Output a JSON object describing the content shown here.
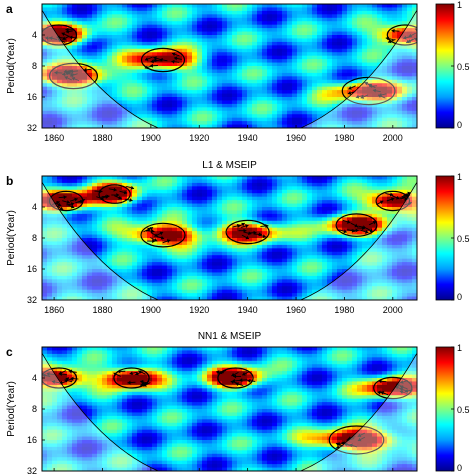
{
  "chart_data": [
    {
      "type": "heatmap",
      "panel_label": "a",
      "title": "",
      "ylabel": "Period(Year)",
      "x_ticks": [
        "1860",
        "1880",
        "1900",
        "1920",
        "1940",
        "1960",
        "1980",
        "2000"
      ],
      "y_ticks": [
        "4",
        "8",
        "16",
        "32"
      ],
      "xlim": [
        1855,
        2010
      ],
      "ylim": [
        2,
        32
      ],
      "y_scale": "log2",
      "colorbar": {
        "range": [
          0,
          1
        ],
        "ticks": [
          "1",
          "0.5",
          "0"
        ]
      },
      "significant_regions": [
        {
          "x": 1862,
          "period": 4,
          "strength": 1.0
        },
        {
          "x": 1868,
          "period": 10,
          "strength": 0.95
        },
        {
          "x": 1905,
          "period": 7,
          "strength": 0.9
        },
        {
          "x": 1990,
          "period": 14,
          "strength": 0.7
        },
        {
          "x": 2005,
          "period": 4,
          "strength": 0.9
        }
      ]
    },
    {
      "type": "heatmap",
      "panel_label": "b",
      "title": "L1 & MSEIP",
      "ylabel": "Period(Year)",
      "x_ticks": [
        "1860",
        "1880",
        "1900",
        "1920",
        "1940",
        "1960",
        "1980",
        "2000"
      ],
      "y_ticks": [
        "4",
        "8",
        "16",
        "32"
      ],
      "xlim": [
        1855,
        2010
      ],
      "ylim": [
        2,
        32
      ],
      "y_scale": "log2",
      "colorbar": {
        "range": [
          0,
          1
        ],
        "ticks": [
          "1",
          "0.5",
          "0"
        ]
      },
      "significant_regions": [
        {
          "x": 1865,
          "period": 3.5,
          "strength": 1.0
        },
        {
          "x": 1885,
          "period": 3,
          "strength": 0.95
        },
        {
          "x": 1905,
          "period": 7.5,
          "strength": 0.95
        },
        {
          "x": 1940,
          "period": 7,
          "strength": 0.8
        },
        {
          "x": 1985,
          "period": 6,
          "strength": 0.85
        },
        {
          "x": 2000,
          "period": 3.5,
          "strength": 1.0
        }
      ]
    },
    {
      "type": "heatmap",
      "panel_label": "c",
      "title": "NN1 & MSEIP",
      "ylabel": "Period(Year)",
      "x_ticks": [
        "1860",
        "1880",
        "1900",
        "1920",
        "1940",
        "1960",
        "1980",
        "2000"
      ],
      "y_ticks": [
        "4",
        "8",
        "16",
        "32"
      ],
      "xlim": [
        1855,
        2010
      ],
      "ylim": [
        2,
        32
      ],
      "y_scale": "log2",
      "colorbar": {
        "range": [
          0,
          1
        ],
        "ticks": [
          "1",
          "0.5",
          "0"
        ]
      },
      "significant_regions": [
        {
          "x": 1862,
          "period": 4,
          "strength": 1.0
        },
        {
          "x": 1892,
          "period": 4,
          "strength": 1.0
        },
        {
          "x": 1935,
          "period": 4,
          "strength": 1.0
        },
        {
          "x": 1985,
          "period": 16,
          "strength": 1.0
        },
        {
          "x": 2000,
          "period": 5,
          "strength": 0.9
        }
      ]
    }
  ],
  "colors": {
    "colormap": [
      "#00008f",
      "#0000ff",
      "#00a0ff",
      "#00ffff",
      "#80ff80",
      "#ffff00",
      "#ff8000",
      "#ff0000",
      "#800000"
    ],
    "arrow": "#000000",
    "coi_shade": "#ffffff",
    "axis": "#000000",
    "text": "#000000"
  }
}
